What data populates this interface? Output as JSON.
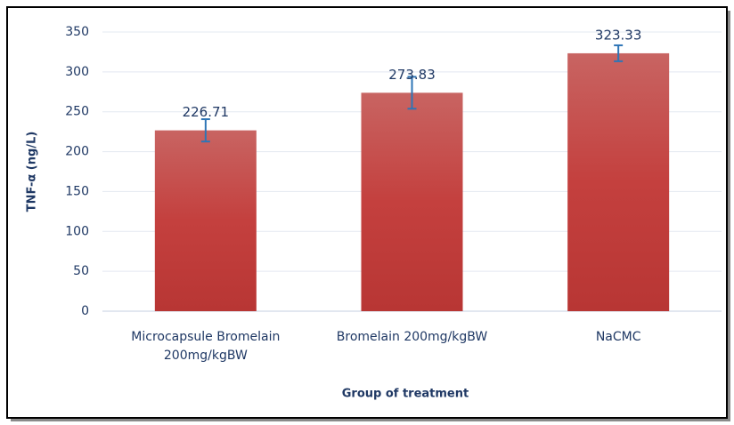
{
  "chart_data": {
    "type": "bar",
    "xlabel": "Group of treatment",
    "ylabel": "TNF-α (ng/L)",
    "categories": [
      "Microcapsule Bromelain 200mg/kgBW",
      "Bromelain 200mg/kgBW",
      "NaCMC"
    ],
    "values": [
      226.71,
      273.83,
      323.33
    ],
    "errors": [
      14,
      20,
      10
    ],
    "color": "#c0504d",
    "error_color": "#2e75b6",
    "ylim": [
      0,
      350
    ],
    "yticks": [
      0,
      50,
      100,
      150,
      200,
      250,
      300,
      350
    ],
    "grid": true
  }
}
